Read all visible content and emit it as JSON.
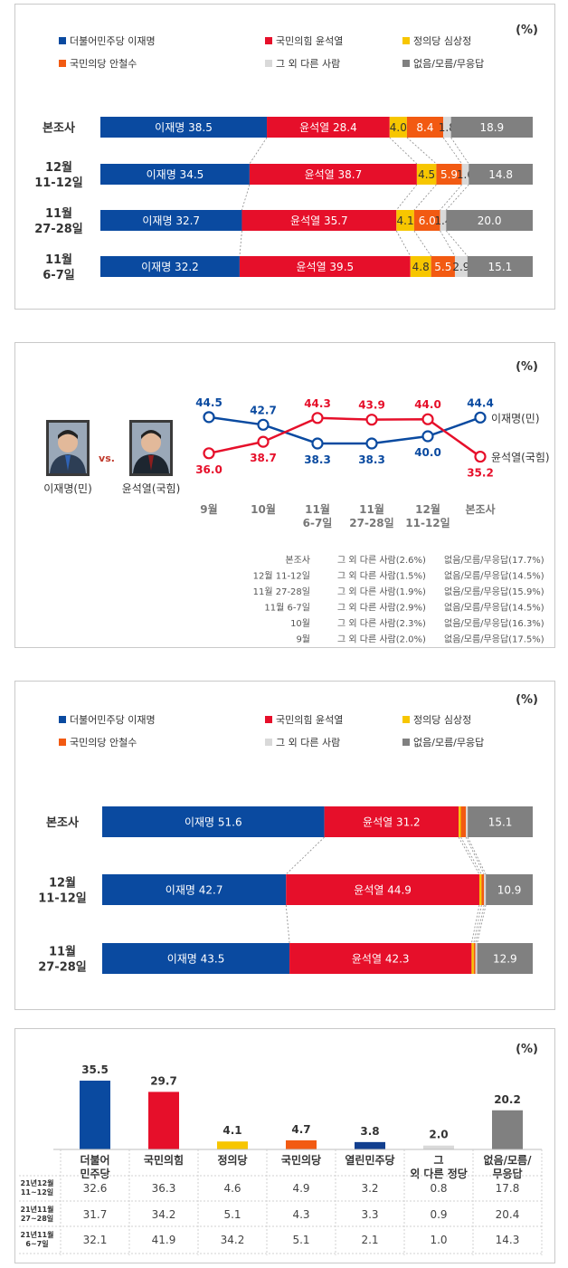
{
  "colors": {
    "lee": "#0a4aa0",
    "yoon": "#e60f2a",
    "sim": "#f7c600",
    "ahn": "#f25a12",
    "other": "#d9d9d9",
    "none": "#808080"
  },
  "legend": [
    {
      "label": "더불어민주당 이재명",
      "key": "lee"
    },
    {
      "label": "국민의힘 윤석열",
      "key": "yoon"
    },
    {
      "label": "정의당 심상정",
      "key": "sim"
    },
    {
      "label": "국민의당 안철수",
      "key": "ahn"
    },
    {
      "label": "그 외 다른 사람",
      "key": "other"
    },
    {
      "label": "없음/모름/무응답",
      "key": "none"
    }
  ],
  "legend2": [
    {
      "label": "더불어민주당 이재명",
      "key": "lee"
    },
    {
      "label": "국민의힘 윤석열",
      "key": "yoon"
    },
    {
      "label": "정의당 심상정",
      "key": "sim"
    },
    {
      "label": "국민의당 안철수",
      "key": "ahn"
    },
    {
      "label": "그 외 다른 사람",
      "key": "other"
    },
    {
      "label": "없음/모름/무응답",
      "key": "none"
    }
  ],
  "chart_data": [
    {
      "type": "bar",
      "unit": "(%)",
      "rows": [
        {
          "label": "본조사",
          "values": [
            38.5,
            28.4,
            4.0,
            8.4,
            1.8,
            18.9
          ],
          "texts": [
            "이재명 38.5",
            "윤석열 28.4",
            "4.0",
            "8.4",
            "1.8",
            "18.9"
          ]
        },
        {
          "label": "12월 11-12일",
          "values": [
            34.5,
            38.7,
            4.5,
            5.9,
            1.6,
            14.8
          ],
          "texts": [
            "이재명 34.5",
            "윤석열 38.7",
            "4.5",
            "5.9",
            "1.6",
            "14.8"
          ]
        },
        {
          "label": "11월 27-28일",
          "values": [
            32.7,
            35.7,
            4.1,
            6.0,
            1.4,
            20.0
          ],
          "texts": [
            "이재명 32.7",
            "윤석열 35.7",
            "4.1",
            "6.0",
            "1.4",
            "20.0"
          ]
        },
        {
          "label": "11월 6-7일",
          "values": [
            32.2,
            39.5,
            4.8,
            5.5,
            2.9,
            15.1
          ],
          "texts": [
            "이재명 32.2",
            "윤석열 39.5",
            "4.8",
            "5.5",
            "2.9",
            "15.1"
          ]
        }
      ]
    },
    {
      "type": "line",
      "unit": "(%)",
      "vs": "vs.",
      "candidate1": "이재명(민)",
      "candidate2": "윤석열(국힘)",
      "x": [
        "9월",
        "10월",
        "11월 6-7일",
        "11월 27-28일",
        "12월 11-12일",
        "본조사"
      ],
      "series": [
        {
          "name": "이재명(민)",
          "key": "lee",
          "values": [
            44.5,
            42.7,
            38.3,
            38.3,
            40.0,
            44.4
          ]
        },
        {
          "name": "윤석열(국힘)",
          "key": "yoon",
          "values": [
            36.0,
            38.7,
            44.3,
            43.9,
            44.0,
            35.2
          ]
        }
      ],
      "notes": [
        [
          "본조사",
          "그 외 다른 사람(2.6%)",
          "없음/모름/무응답(17.7%)"
        ],
        [
          "12월 11-12일",
          "그 외 다른 사람(1.5%)",
          "없음/모름/무응답(14.5%)"
        ],
        [
          "11월 27-28일",
          "그 외 다른 사람(1.9%)",
          "없음/모름/무응답(15.9%)"
        ],
        [
          "11월 6-7일",
          "그 외 다른 사람(2.9%)",
          "없음/모름/무응답(14.5%)"
        ],
        [
          "10월",
          "그 외 다른 사람(2.3%)",
          "없음/모름/무응답(16.3%)"
        ],
        [
          "9월",
          "그 외 다른 사람(2.0%)",
          "없음/모름/무응답(17.5%)"
        ]
      ]
    },
    {
      "type": "bar",
      "unit": "(%)",
      "rows": [
        {
          "label": "본조사",
          "values": [
            51.6,
            31.2,
            0.5,
            1.2,
            0.4,
            15.1
          ],
          "texts": [
            "이재명 51.6",
            "윤석열 31.2",
            "",
            "",
            "",
            "15.1"
          ]
        },
        {
          "label": "12월 11-12일",
          "values": [
            42.7,
            44.9,
            0.5,
            0.6,
            0.4,
            10.9
          ],
          "texts": [
            "이재명 42.7",
            "윤석열 44.9",
            "",
            "",
            "",
            "10.9"
          ]
        },
        {
          "label": "11월 27-28일",
          "values": [
            43.5,
            42.3,
            0.5,
            0.4,
            0.4,
            12.9
          ],
          "texts": [
            "이재명 43.5",
            "윤석열 42.3",
            "",
            "",
            "",
            "12.9"
          ]
        }
      ]
    },
    {
      "type": "bar",
      "unit": "(%)",
      "categories": [
        "더불어 민주당",
        "국민의힘",
        "정의당",
        "국민의당",
        "열린민주당",
        "그 외 다른 정당",
        "없음/모름/ 무응답"
      ],
      "values": [
        35.5,
        29.7,
        4.1,
        4.7,
        3.8,
        2.0,
        20.2
      ],
      "value_texts": [
        "35.5",
        "29.7",
        "4.1",
        "4.7",
        "3.8",
        "2.0",
        "20.2"
      ],
      "bar_keys": [
        "lee",
        "yoon",
        "sim",
        "ahn",
        "darkblue",
        "other",
        "none"
      ],
      "table": [
        {
          "label": "21년12월 11~12일",
          "values": [
            "32.6",
            "36.3",
            "4.6",
            "4.9",
            "3.2",
            "0.8",
            "17.8"
          ]
        },
        {
          "label": "21년11월 27~28일",
          "values": [
            "31.7",
            "34.2",
            "5.1",
            "4.3",
            "3.3",
            "0.9",
            "20.4"
          ]
        },
        {
          "label": "21년11월 6~7일",
          "values": [
            "32.1",
            "41.9",
            "34.2",
            "5.1",
            "2.1",
            "1.0",
            "14.3"
          ]
        }
      ]
    }
  ]
}
